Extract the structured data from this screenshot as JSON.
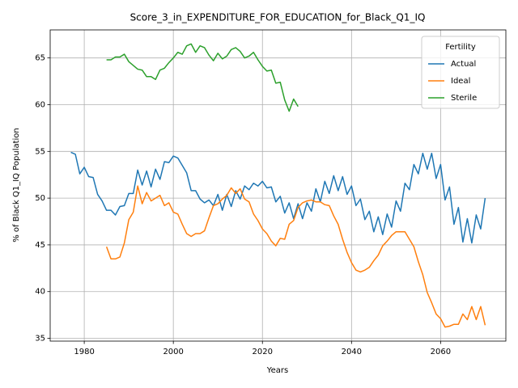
{
  "chart_data": {
    "type": "line",
    "title": "Score_3_in_EXPENDITURE_FOR_EDUCATION_for_Black_Q1_IQ",
    "xlabel": "Years",
    "ylabel": "% of Black Q1_IQ Population",
    "legend_title": "Fertility",
    "legend": "upper right",
    "grid": true,
    "xlim": [
      1972.35,
      2074.65
    ],
    "ylim": [
      34.7,
      68.0
    ],
    "xticks": [
      1980,
      2000,
      2020,
      2040,
      2060
    ],
    "yticks": [
      35,
      40,
      45,
      50,
      55,
      60,
      65
    ],
    "series": [
      {
        "name": "Actual",
        "color": "#1f77b4",
        "x": [
          1977,
          1978,
          1979,
          1980,
          1981,
          1982,
          1983,
          1984,
          1985,
          1986,
          1987,
          1988,
          1989,
          1990,
          1991,
          1992,
          1993,
          1994,
          1995,
          1996,
          1997,
          1998,
          1999,
          2000,
          2001,
          2002,
          2003,
          2004,
          2005,
          2006,
          2007,
          2008,
          2009,
          2010,
          2011,
          2012,
          2013,
          2014,
          2015,
          2016,
          2017,
          2018,
          2019,
          2020,
          2021,
          2022,
          2023,
          2024,
          2025,
          2026,
          2027,
          2028,
          2029,
          2030,
          2031,
          2032,
          2033,
          2034,
          2035,
          2036,
          2037,
          2038,
          2039,
          2040,
          2041,
          2042,
          2043,
          2044,
          2045,
          2046,
          2047,
          2048,
          2049,
          2050,
          2051,
          2052,
          2053,
          2054,
          2055,
          2056,
          2057,
          2058,
          2059,
          2060,
          2061,
          2062,
          2063,
          2064,
          2065,
          2066,
          2067,
          2068,
          2069,
          2070
        ],
        "values": [
          54.9,
          54.7,
          52.6,
          53.3,
          52.3,
          52.2,
          50.4,
          49.7,
          48.7,
          48.7,
          48.2,
          49.1,
          49.2,
          50.5,
          50.5,
          53.0,
          51.4,
          52.9,
          51.2,
          53.1,
          52.0,
          53.9,
          53.8,
          54.5,
          54.3,
          53.5,
          52.7,
          50.8,
          50.8,
          49.9,
          49.5,
          49.8,
          49.2,
          50.4,
          48.7,
          50.4,
          49.1,
          50.8,
          49.9,
          51.3,
          50.9,
          51.6,
          51.3,
          51.8,
          51.1,
          51.2,
          49.6,
          50.2,
          48.4,
          49.5,
          47.8,
          49.4,
          47.8,
          49.5,
          48.6,
          51.0,
          49.6,
          51.8,
          50.5,
          52.4,
          50.8,
          52.3,
          50.4,
          51.3,
          49.2,
          49.9,
          47.7,
          48.6,
          46.4,
          48.0,
          46.1,
          48.3,
          46.9,
          49.7,
          48.6,
          51.6,
          50.9,
          53.6,
          52.6,
          54.8,
          53.1,
          54.8,
          52.1,
          53.6,
          49.8,
          51.2,
          47.2,
          49.0,
          45.3,
          47.8,
          45.2,
          48.2,
          46.7,
          50.0
        ]
      },
      {
        "name": "Ideal",
        "color": "#ff7f0e",
        "x": [
          1985,
          1986,
          1987,
          1988,
          1989,
          1990,
          1991,
          1992,
          1993,
          1994,
          1995,
          1996,
          1997,
          1998,
          1999,
          2000,
          2001,
          2002,
          2003,
          2004,
          2005,
          2006,
          2007,
          2008,
          2009,
          2010,
          2011,
          2012,
          2013,
          2014,
          2015,
          2016,
          2017,
          2018,
          2019,
          2020,
          2021,
          2022,
          2023,
          2024,
          2025,
          2026,
          2027,
          2028,
          2029,
          2030,
          2031,
          2032,
          2033,
          2034,
          2035,
          2036,
          2037,
          2038,
          2039,
          2040,
          2041,
          2042,
          2043,
          2044,
          2045,
          2046,
          2047,
          2048,
          2049,
          2050,
          2051,
          2052,
          2053,
          2054,
          2055,
          2056,
          2057,
          2058,
          2059,
          2060,
          2061,
          2062,
          2063,
          2064,
          2065,
          2066,
          2067,
          2068,
          2069,
          2070
        ],
        "values": [
          44.8,
          43.5,
          43.5,
          43.7,
          45.2,
          47.7,
          48.5,
          51.3,
          49.4,
          50.6,
          49.7,
          50.0,
          50.3,
          49.2,
          49.5,
          48.5,
          48.3,
          47.2,
          46.2,
          45.9,
          46.2,
          46.2,
          46.5,
          47.9,
          49.2,
          49.4,
          49.9,
          50.3,
          51.1,
          50.5,
          51.0,
          49.9,
          49.6,
          48.3,
          47.6,
          46.7,
          46.2,
          45.4,
          44.9,
          45.7,
          45.6,
          47.2,
          47.6,
          49.0,
          49.5,
          49.7,
          49.8,
          49.6,
          49.6,
          49.3,
          49.2,
          48.1,
          47.2,
          45.6,
          44.2,
          43.1,
          42.3,
          42.1,
          42.3,
          42.6,
          43.3,
          43.9,
          44.9,
          45.4,
          46.0,
          46.4,
          46.4,
          46.4,
          45.6,
          44.8,
          43.2,
          41.8,
          39.9,
          38.8,
          37.6,
          37.1,
          36.2,
          36.3,
          36.5,
          36.5,
          37.6,
          37.0,
          38.4,
          37.0,
          38.4,
          36.4
        ]
      },
      {
        "name": "Sterile",
        "color": "#2ca02c",
        "x": [
          1985,
          1986,
          1987,
          1988,
          1989,
          1990,
          1991,
          1992,
          1993,
          1994,
          1995,
          1996,
          1997,
          1998,
          1999,
          2000,
          2001,
          2002,
          2003,
          2004,
          2005,
          2006,
          2007,
          2008,
          2009,
          2010,
          2011,
          2012,
          2013,
          2014,
          2015,
          2016,
          2017,
          2018,
          2019,
          2020,
          2021,
          2022,
          2023,
          2024,
          2025,
          2026,
          2027,
          2028
        ],
        "values": [
          64.8,
          64.8,
          65.1,
          65.1,
          65.4,
          64.6,
          64.2,
          63.8,
          63.7,
          63.0,
          63.0,
          62.7,
          63.7,
          63.9,
          64.5,
          65.0,
          65.6,
          65.4,
          66.3,
          66.5,
          65.6,
          66.3,
          66.1,
          65.3,
          64.7,
          65.5,
          64.9,
          65.2,
          65.9,
          66.1,
          65.7,
          65.0,
          65.2,
          65.6,
          64.8,
          64.1,
          63.6,
          63.7,
          62.3,
          62.4,
          60.5,
          59.3,
          60.6,
          59.8
        ]
      }
    ]
  }
}
